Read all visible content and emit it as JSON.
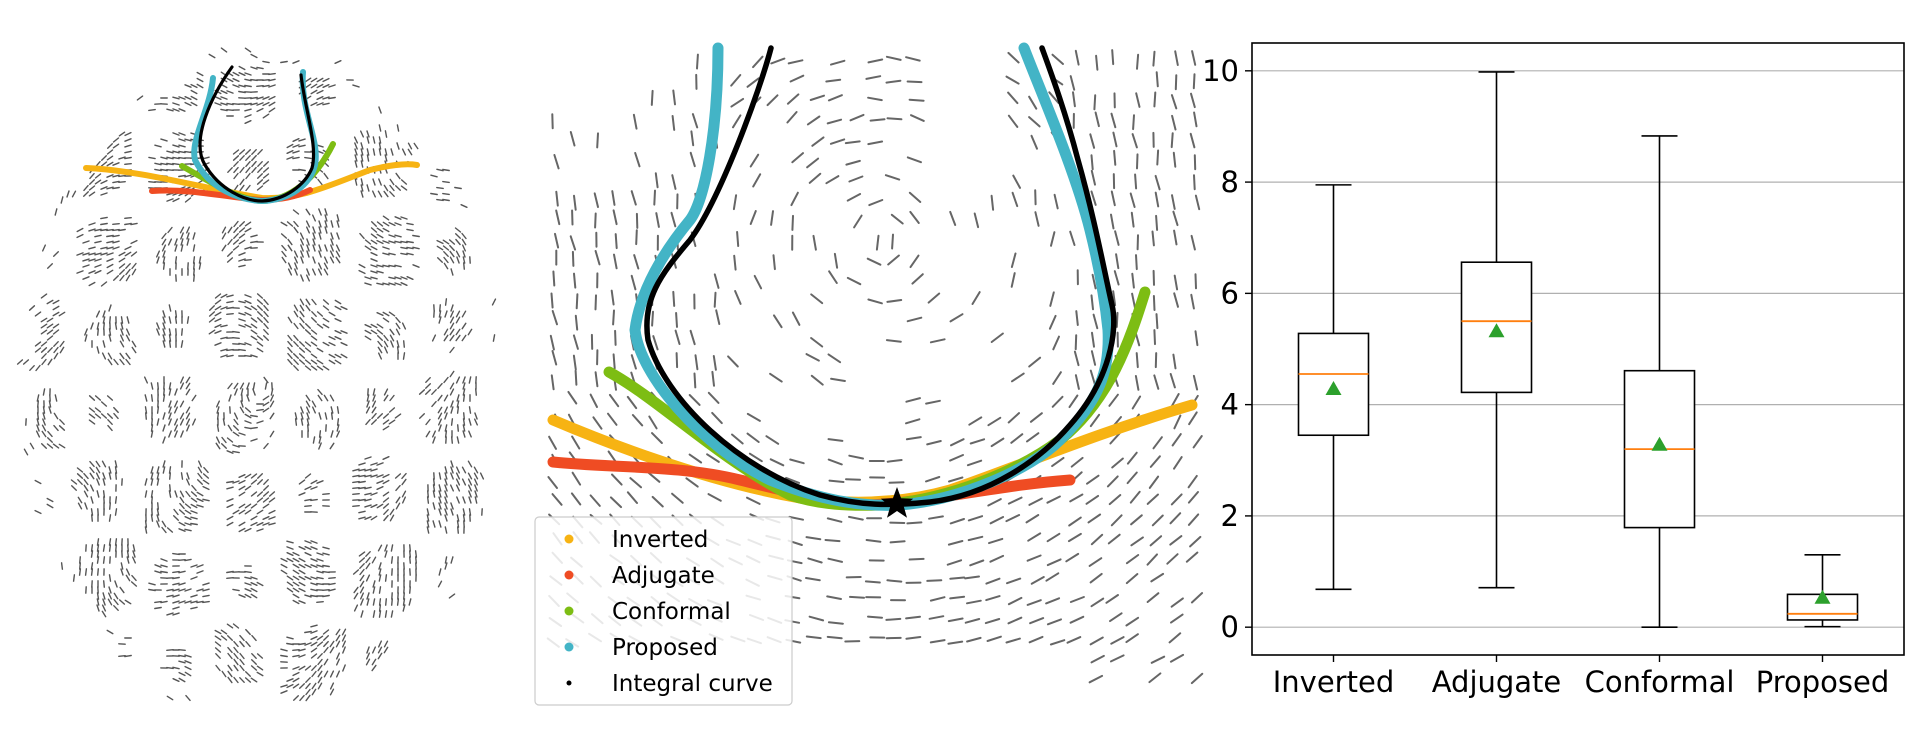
{
  "figure": {
    "panels": [
      "brain-field-overview",
      "zoomed-field-with-curves",
      "error-boxplot"
    ]
  },
  "legend": {
    "items": [
      {
        "label": "Inverted",
        "color": "#f7b313"
      },
      {
        "label": "Adjugate",
        "color": "#ef4c23"
      },
      {
        "label": "Conformal",
        "color": "#7dbd13"
      },
      {
        "label": "Proposed",
        "color": "#43b4c6"
      },
      {
        "label": "Integral curve",
        "color": "#000000"
      }
    ]
  },
  "chart_data": {
    "type": "boxplot",
    "title": "",
    "xlabel": "",
    "ylabel": "",
    "ylim": [
      -0.5,
      10.5
    ],
    "yticks": [
      0,
      2,
      4,
      6,
      8,
      10
    ],
    "grid_axis": "y",
    "categories": [
      "Inverted",
      "Adjugate",
      "Conformal",
      "Proposed"
    ],
    "boxes": [
      {
        "name": "Inverted",
        "whisker_low": 0.68,
        "q1": 3.45,
        "median": 4.55,
        "q3": 5.28,
        "whisker_high": 7.95,
        "mean": 4.28
      },
      {
        "name": "Adjugate",
        "whisker_low": 0.71,
        "q1": 4.22,
        "median": 5.5,
        "q3": 6.56,
        "whisker_high": 9.98,
        "mean": 5.32
      },
      {
        "name": "Conformal",
        "whisker_low": 0.0,
        "q1": 1.79,
        "median": 3.2,
        "q3": 4.61,
        "whisker_high": 8.83,
        "mean": 3.28
      },
      {
        "name": "Proposed",
        "whisker_low": 0.01,
        "q1": 0.13,
        "median": 0.24,
        "q3": 0.59,
        "whisker_high": 1.3,
        "mean": 0.53
      }
    ],
    "colors": {
      "box": "#000000",
      "median": "#ff7f0e",
      "mean": "#2ca02c",
      "grid": "#b0b0b0"
    }
  }
}
